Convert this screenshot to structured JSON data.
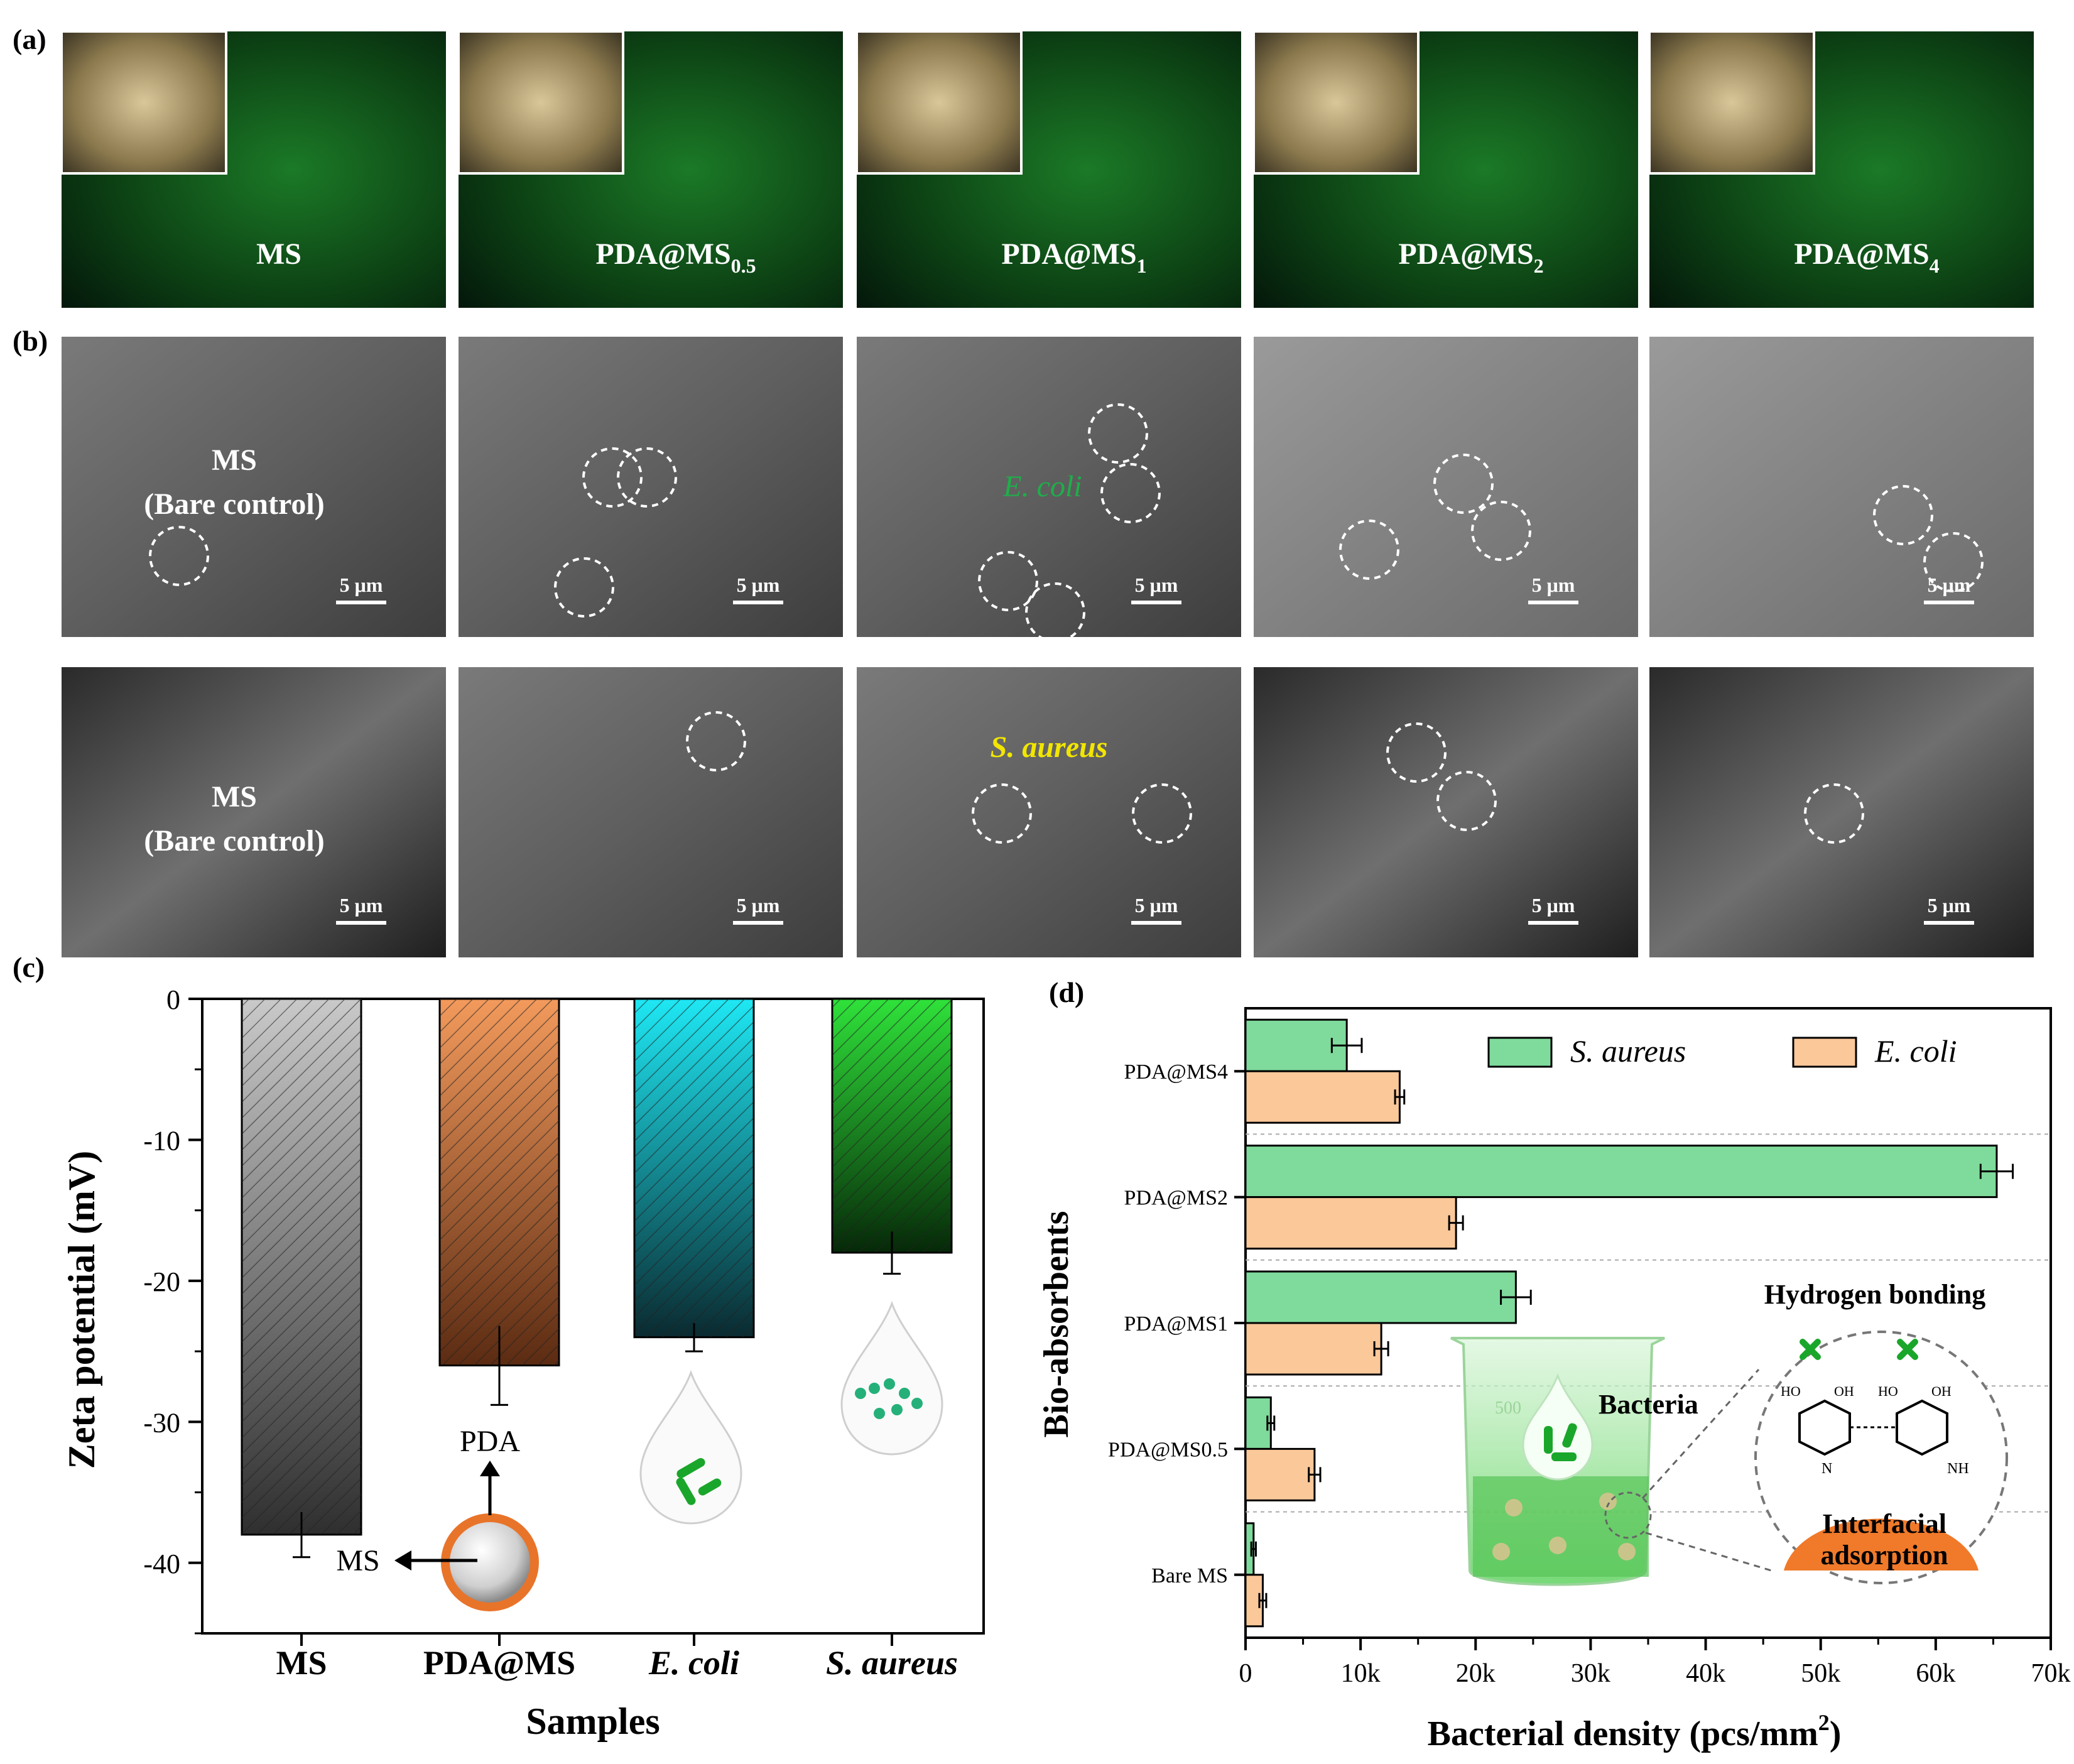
{
  "panel_labels": {
    "a": "(a)",
    "b": "(b)",
    "c": "(c)",
    "d": "(d)"
  },
  "fluorescence_panels": [
    {
      "base": "MS",
      "sub": ""
    },
    {
      "base": "PDA@MS",
      "sub": "0.5"
    },
    {
      "base": "PDA@MS",
      "sub": "1"
    },
    {
      "base": "PDA@MS",
      "sub": "2"
    },
    {
      "base": "PDA@MS",
      "sub": "4"
    }
  ],
  "sem": {
    "scale_bar": "5 μm",
    "bare_label_line1": "MS",
    "bare_label_line2": "(Bare control)",
    "ecoli_label": "E. coli",
    "saureus_label": "S. aureus"
  },
  "colors": {
    "ecoli_label": "#1fae4a",
    "saureus_label": "#f2e600",
    "fluor_green": "#0f5a1a",
    "bar_ms": "#8a8a8a",
    "bar_pda": "#c8703a",
    "bar_ecoli": "#11c8d8",
    "bar_saureus": "#1ab82a",
    "d_saureus": "#7fdb9c",
    "d_ecoli": "#fbc89a"
  },
  "chart_data": [
    {
      "type": "bar",
      "categories": [
        "MS",
        "PDA@MS",
        "E. coli",
        "S. aureus"
      ],
      "values": [
        -38,
        -26,
        -24,
        -18
      ],
      "errors": [
        1.6,
        2.8,
        1.0,
        1.5
      ],
      "xlabel": "Samples",
      "ylabel": "Zeta potential (mV)",
      "ylim": [
        -45,
        0
      ],
      "yticks": [
        0,
        -10,
        -20,
        -30,
        -40
      ],
      "annotations": {
        "pda": "PDA",
        "ms": "MS"
      }
    },
    {
      "type": "bar",
      "orientation": "horizontal",
      "categories": [
        "PDA@MS4",
        "PDA@MS2",
        "PDA@MS1",
        "PDA@MS0.5",
        "Bare MS"
      ],
      "series": [
        {
          "name": "S. aureus",
          "values": [
            8800,
            65300,
            23500,
            2200,
            700
          ],
          "errors": [
            1300,
            1400,
            1300,
            300,
            200
          ]
        },
        {
          "name": "E. coli",
          "values": [
            13400,
            18300,
            11800,
            6000,
            1500
          ],
          "errors": [
            400,
            600,
            600,
            500,
            300
          ]
        }
      ],
      "xlabel": "Bacterial density (pcs/mm",
      "xlabel_sup": "2",
      "xlabel_end": ")",
      "ylabel": "Bio-absorbents",
      "xlim": [
        0,
        70000
      ],
      "xticks": [
        "0",
        "10k",
        "20k",
        "30k",
        "40k",
        "50k",
        "60k",
        "70k"
      ],
      "legend_position": "top-right",
      "annotations": {
        "bacteria": "Bacteria",
        "hydrogen": "Hydrogen bonding",
        "interfacial_1": "Interfacial",
        "interfacial_2": "adsorption",
        "beaker_mark": "500",
        "ho1": "HO",
        "oh1": "OH",
        "ho2": "HO",
        "oh2": "OH",
        "n": "N",
        "nh": "NH"
      }
    }
  ]
}
